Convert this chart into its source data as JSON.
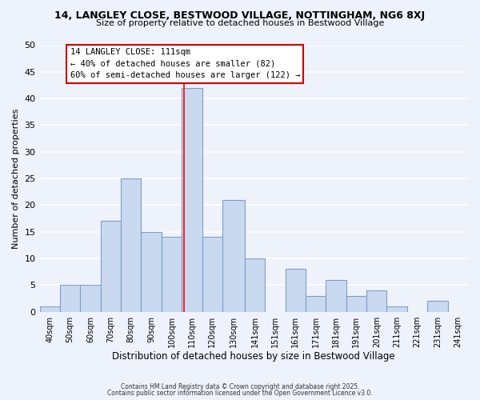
{
  "title": "14, LANGLEY CLOSE, BESTWOOD VILLAGE, NOTTINGHAM, NG6 8XJ",
  "subtitle": "Size of property relative to detached houses in Bestwood Village",
  "xlabel": "Distribution of detached houses by size in Bestwood Village",
  "ylabel": "Number of detached properties",
  "bar_labels": [
    "40sqm",
    "50sqm",
    "60sqm",
    "70sqm",
    "80sqm",
    "90sqm",
    "100sqm",
    "110sqm",
    "120sqm",
    "130sqm",
    "141sqm",
    "151sqm",
    "161sqm",
    "171sqm",
    "181sqm",
    "191sqm",
    "201sqm",
    "211sqm",
    "221sqm",
    "231sqm",
    "241sqm"
  ],
  "bar_values": [
    1,
    5,
    5,
    17,
    25,
    15,
    14,
    42,
    14,
    21,
    10,
    0,
    8,
    3,
    6,
    3,
    4,
    1,
    0,
    2,
    0
  ],
  "bin_edges": [
    40,
    50,
    60,
    70,
    80,
    90,
    100,
    110,
    120,
    130,
    141,
    151,
    161,
    171,
    181,
    191,
    201,
    211,
    221,
    231,
    241,
    251
  ],
  "bar_color": "#c9d9f0",
  "bar_edgecolor": "#7a9fc8",
  "vline_x": 111,
  "vline_color": "red",
  "ylim": [
    0,
    50
  ],
  "yticks": [
    0,
    5,
    10,
    15,
    20,
    25,
    30,
    35,
    40,
    45,
    50
  ],
  "annotation_title": "14 LANGLEY CLOSE: 111sqm",
  "annotation_line1": "← 40% of detached houses are smaller (82)",
  "annotation_line2": "60% of semi-detached houses are larger (122) →",
  "annotation_box_edgecolor": "#cc0000",
  "annotation_box_facecolor": "white",
  "background_color": "#eef2fb",
  "grid_color": "white",
  "footer1": "Contains HM Land Registry data © Crown copyright and database right 2025.",
  "footer2": "Contains public sector information licensed under the Open Government Licence v3.0."
}
